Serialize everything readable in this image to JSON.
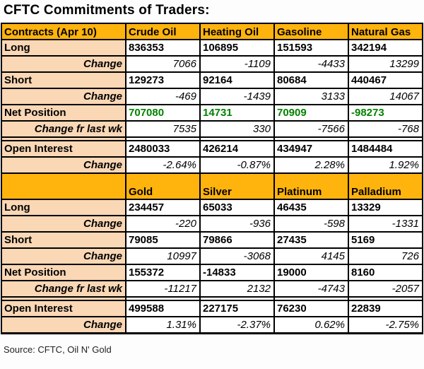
{
  "title": "CFTC Commitments of Traders:",
  "source_note": "Source: CFTC, Oil N' Gold",
  "colors": {
    "header_bg": "#FFB30D",
    "label_bg": "#FAD7B5",
    "net_green": "#008200",
    "border": "#000000"
  },
  "chart_data": {
    "type": "table",
    "title": "CFTC Commitments of Traders:",
    "sections": [
      {
        "columns": [
          "Contracts (Apr 10)",
          "Crude Oil",
          "Heating Oil",
          "Gasoline",
          "Natural Gas"
        ],
        "header_tall": false,
        "rows": [
          {
            "label": "Long",
            "style": "value",
            "values": [
              "836353",
              "106895",
              "151593",
              "342194"
            ]
          },
          {
            "label": "Change",
            "style": "change",
            "values": [
              "7066",
              "-1109",
              "-4433",
              "13299"
            ]
          },
          {
            "label": "Short",
            "style": "value",
            "values": [
              "129273",
              "92164",
              "80684",
              "440467"
            ]
          },
          {
            "label": "Change",
            "style": "change",
            "values": [
              "-469",
              "-1439",
              "3133",
              "14067"
            ]
          },
          {
            "label": "Net Position",
            "style": "net",
            "green": true,
            "values": [
              "707080",
              "14731",
              "70909",
              "-98273"
            ]
          },
          {
            "label": "Change fr last wk",
            "style": "change",
            "values": [
              "7535",
              "330",
              "-7566",
              "-768"
            ]
          },
          {
            "label": "",
            "style": "gap",
            "values": [
              "",
              "",
              "",
              ""
            ]
          },
          {
            "label": "Open Interest",
            "style": "value",
            "values": [
              "2480033",
              "426214",
              "434947",
              "1484484"
            ]
          },
          {
            "label": "Change",
            "style": "change",
            "values": [
              "-2.64%",
              "-0.87%",
              "2.28%",
              "1.92%"
            ]
          }
        ]
      },
      {
        "columns": [
          "",
          "Gold",
          "Silver",
          "Platinum",
          "Palladium"
        ],
        "header_tall": true,
        "rows": [
          {
            "label": "Long",
            "style": "value",
            "values": [
              "234457",
              "65033",
              "46435",
              "13329"
            ]
          },
          {
            "label": "Change",
            "style": "change",
            "values": [
              "-220",
              "-936",
              "-598",
              "-1331"
            ]
          },
          {
            "label": "Short",
            "style": "value",
            "values": [
              "79085",
              "79866",
              "27435",
              "5169"
            ]
          },
          {
            "label": "Change",
            "style": "change",
            "values": [
              "10997",
              "-3068",
              "4145",
              "726"
            ]
          },
          {
            "label": "Net Position",
            "style": "net",
            "green": false,
            "values": [
              "155372",
              "-14833",
              "19000",
              "8160"
            ]
          },
          {
            "label": "Change fr last wk",
            "style": "change",
            "values": [
              "-11217",
              "2132",
              "-4743",
              "-2057"
            ]
          },
          {
            "label": "",
            "style": "gap",
            "values": [
              "",
              "",
              "",
              ""
            ]
          },
          {
            "label": "Open Interest",
            "style": "value",
            "values": [
              "499588",
              "227175",
              "76230",
              "22839"
            ]
          },
          {
            "label": "Change",
            "style": "change",
            "values": [
              "1.31%",
              "-2.37%",
              "0.62%",
              "-2.75%"
            ]
          }
        ]
      }
    ]
  }
}
